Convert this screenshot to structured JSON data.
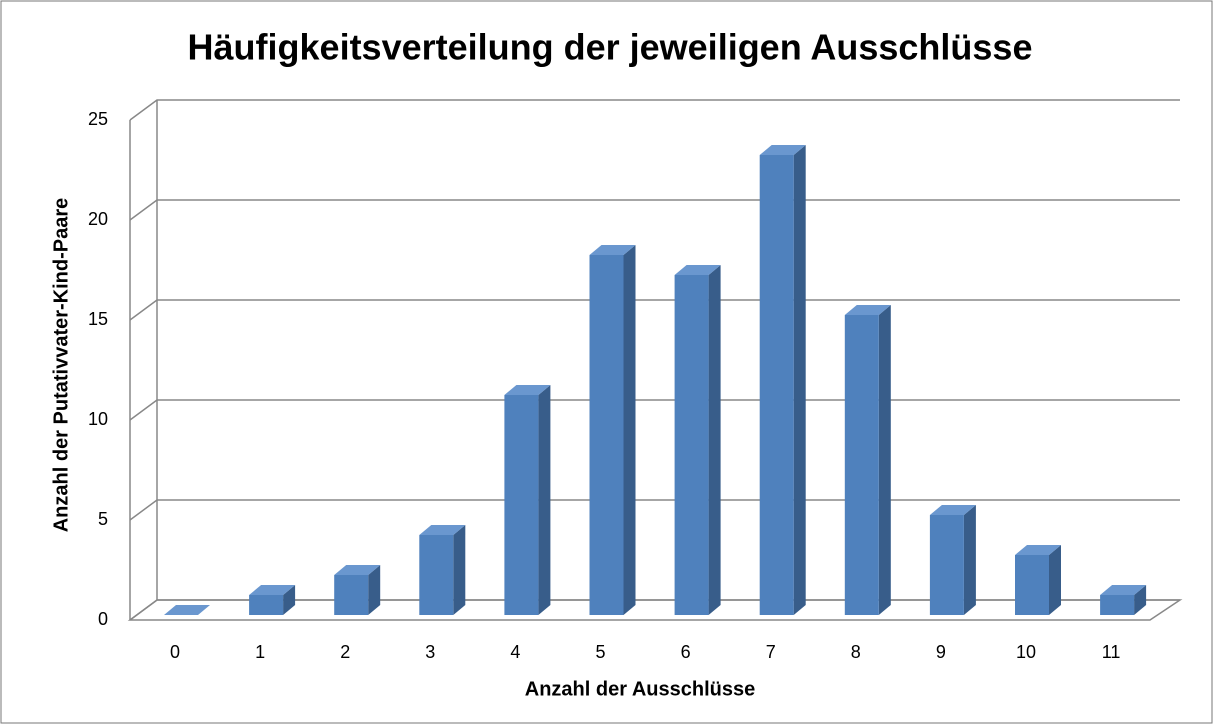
{
  "chart_data": {
    "type": "bar3d",
    "title": "Häufigkeitsverteilung der jeweiligen Ausschlüsse",
    "x_label": "Anzahl der Ausschlüsse",
    "y_label": "Anzahl der Putativvater-Kind-Paare",
    "categories": [
      "0",
      "1",
      "2",
      "3",
      "4",
      "5",
      "6",
      "7",
      "8",
      "9",
      "10",
      "11"
    ],
    "values": [
      0,
      1,
      2,
      4,
      11,
      18,
      17,
      23,
      15,
      5,
      3,
      1
    ],
    "color": "#4f81bd",
    "ylim": [
      0,
      25
    ],
    "yticks": [
      0,
      5,
      10,
      15,
      20,
      25
    ],
    "grid": true
  }
}
